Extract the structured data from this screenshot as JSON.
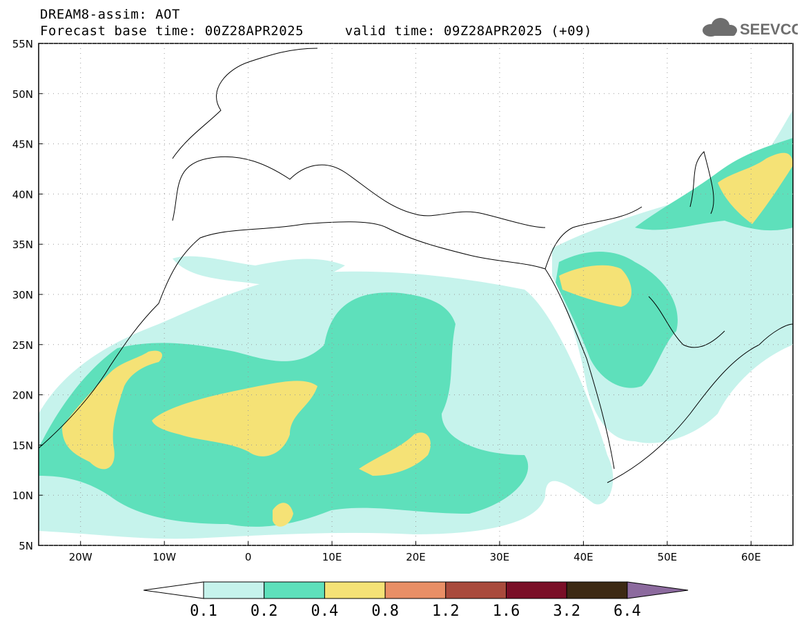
{
  "header": {
    "line1": "DREAM8-assim: AOT",
    "base_time": "Forecast base time: 00Z28APR2025",
    "valid_time": "valid time: 09Z28APR2025 (+09)"
  },
  "logo": {
    "text": "SEEVCCC",
    "icon": "cloud-icon"
  },
  "map": {
    "lat_labels": [
      "55N",
      "50N",
      "45N",
      "40N",
      "35N",
      "30N",
      "25N",
      "20N",
      "15N",
      "10N",
      "5N"
    ],
    "lon_labels": [
      "20W",
      "10W",
      "0",
      "10E",
      "20E",
      "30E",
      "40E",
      "50E",
      "60E"
    ],
    "lat_range": [
      5,
      55
    ],
    "lon_range": [
      -25,
      65
    ]
  },
  "colorbar": {
    "labels": [
      "0.1",
      "0.2",
      "0.4",
      "0.8",
      "1.2",
      "1.6",
      "3.2",
      "6.4"
    ],
    "colors": [
      "#ffffff",
      "#c6f3ec",
      "#5ee0bb",
      "#f5e276",
      "#e98f66",
      "#a94a3c",
      "#7a0f27",
      "#3d2a14",
      "#8c6a9e"
    ]
  },
  "field_colors": {
    "c1": "#c6f3ec",
    "c2": "#5ee0bb",
    "c3": "#f5e276"
  }
}
